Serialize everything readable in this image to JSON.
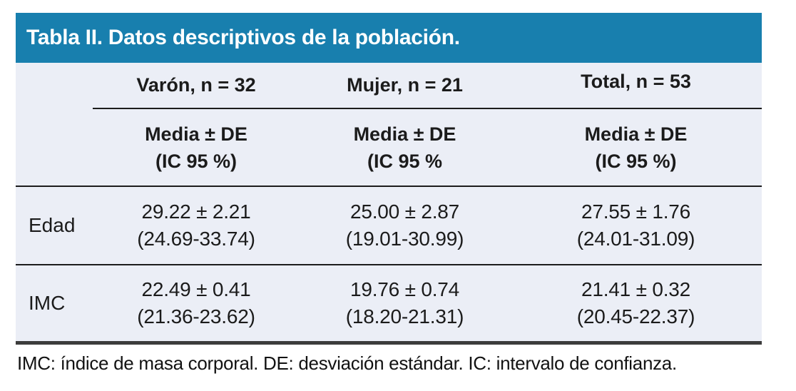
{
  "title": "Tabla II. Datos descriptivos de la población.",
  "colors": {
    "header_bg": "#187fae",
    "header_text": "#ffffff",
    "body_bg": "#ebeef6",
    "text": "#1b1b1b",
    "rule": "#1c1c1c",
    "bottom_border": "#3c3c3c"
  },
  "table": {
    "group_headers": [
      "Varón, n = 32",
      "Mujer, n = 21",
      "Total, n = 53"
    ],
    "sub_headers": [
      {
        "line1": "Media ± DE",
        "line2": "(IC 95 %)"
      },
      {
        "line1": "Media ± DE",
        "line2": "(IC 95 %"
      },
      {
        "line1": "Media ± DE",
        "line2": "(IC 95 %)"
      }
    ],
    "rows": [
      {
        "label": "Edad",
        "cells": [
          {
            "line1": "29.22 ± 2.21",
            "line2": "(24.69-33.74)"
          },
          {
            "line1": "25.00 ± 2.87",
            "line2": "(19.01-30.99)"
          },
          {
            "line1": "27.55 ± 1.76",
            "line2": "(24.01-31.09)"
          }
        ]
      },
      {
        "label": "IMC",
        "cells": [
          {
            "line1": "22.49 ± 0.41",
            "line2": "(21.36-23.62)"
          },
          {
            "line1": "19.76 ± 0.74",
            "line2": "(18.20-21.31)"
          },
          {
            "line1": "21.41 ± 0.32",
            "line2": "(20.45-22.37)"
          }
        ]
      }
    ]
  },
  "footnote": "IMC: índice de masa corporal. DE: desviación estándar. IC: intervalo de confianza."
}
